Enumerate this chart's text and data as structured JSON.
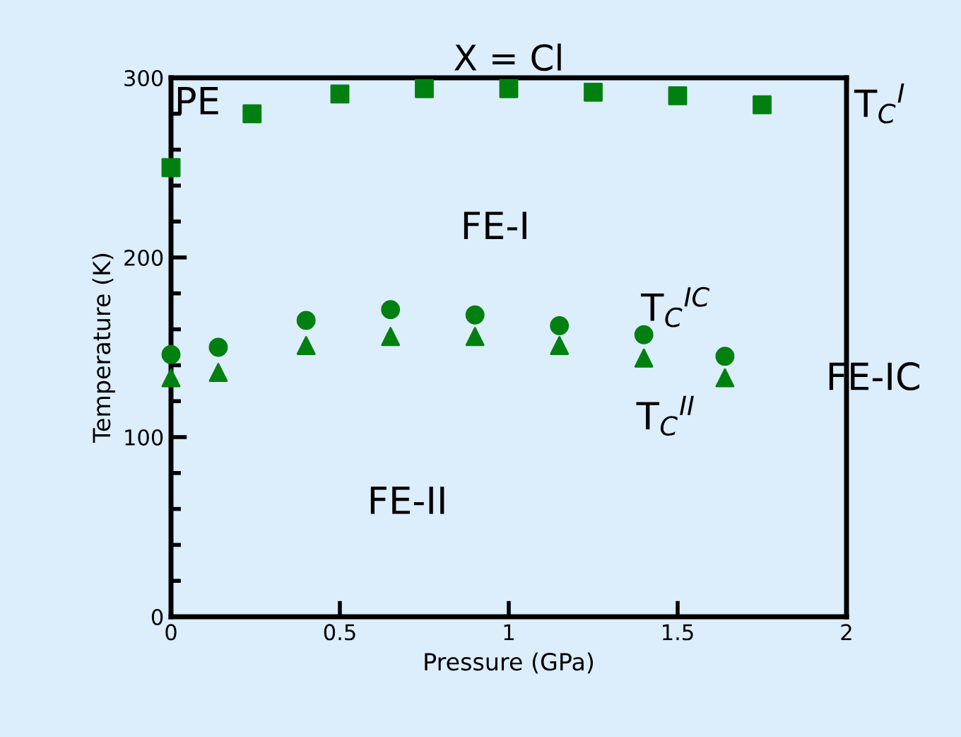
{
  "chart_data": {
    "type": "scatter",
    "title": "X = Cl",
    "xlabel": "Pressure (GPa)",
    "ylabel": "Temperature (K)",
    "xlim": [
      0,
      2
    ],
    "ylim": [
      0,
      300
    ],
    "xticks": [
      0,
      0.5,
      1,
      1.5,
      2
    ],
    "yticks": [
      0,
      100,
      200,
      300
    ],
    "grid": false,
    "series": [
      {
        "name": "T$_{C}$$^{I}$",
        "color": "#008010",
        "marker": "square",
        "x": [
          0,
          0.24,
          0.5,
          0.75,
          1.0,
          1.25,
          1.5,
          1.75
        ],
        "values": [
          250,
          280,
          291,
          294,
          294,
          292,
          290,
          285
        ]
      },
      {
        "name": "T$_{C}$$^{IC}$",
        "color": "#008010",
        "marker": "circle",
        "x": [
          0,
          0.14,
          0.4,
          0.65,
          0.9,
          1.15,
          1.4,
          1.64
        ],
        "values": [
          146,
          150,
          165,
          171,
          168,
          162,
          157,
          145
        ]
      },
      {
        "name": "T$_{C}$$^{II}$",
        "color": "#008010",
        "marker": "triangle",
        "x": [
          0,
          0.14,
          0.4,
          0.65,
          0.9,
          1.15,
          1.4,
          1.64
        ],
        "values": [
          133,
          136,
          151,
          156,
          156,
          151,
          144,
          133
        ]
      }
    ],
    "annotations": [
      "PE",
      "FE-I",
      "FE-II",
      "FE-IC"
    ]
  }
}
